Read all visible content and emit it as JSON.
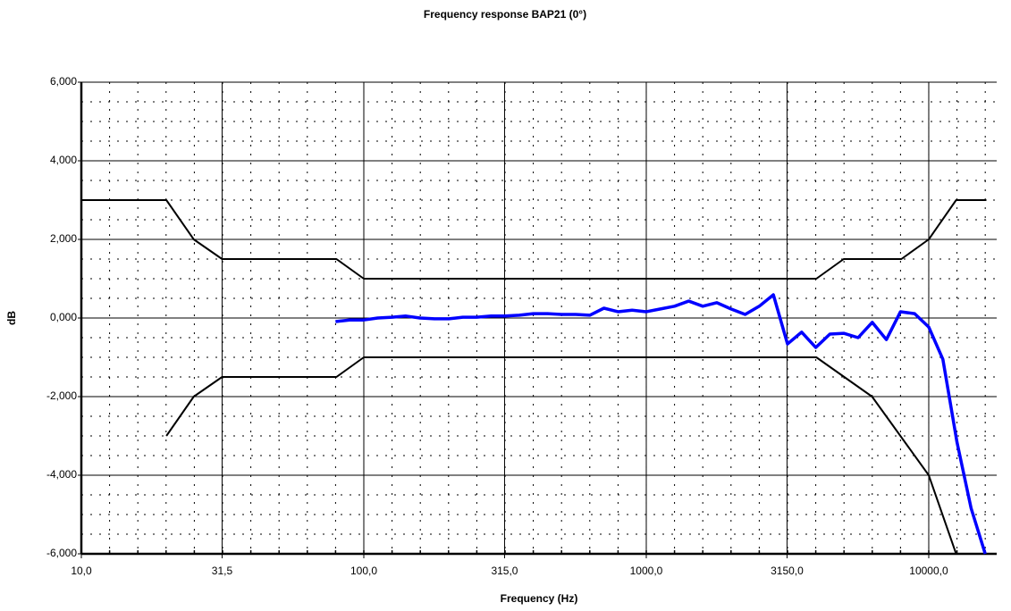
{
  "chart_data": {
    "type": "line",
    "title": "Frequency response BAP21 (0°)",
    "xlabel": "Frequency (Hz)",
    "ylabel": "dB",
    "xscale": "log",
    "xlim": [
      10,
      17400
    ],
    "xticks": [
      {
        "value": 10,
        "label": "10,0"
      },
      {
        "value": 31.5,
        "label": "31,5"
      },
      {
        "value": 100,
        "label": "100,0"
      },
      {
        "value": 315,
        "label": "315,0"
      },
      {
        "value": 1000,
        "label": "1000,0"
      },
      {
        "value": 3150,
        "label": "3150,0"
      },
      {
        "value": 10000,
        "label": "10000,0"
      }
    ],
    "ylim": [
      -6,
      6
    ],
    "yticks": [
      {
        "value": -6,
        "label": "-6,000"
      },
      {
        "value": -4,
        "label": "-4,000"
      },
      {
        "value": -2,
        "label": "-2,000"
      },
      {
        "value": 0,
        "label": "0,000"
      },
      {
        "value": 2,
        "label": "2,000"
      },
      {
        "value": 4,
        "label": "4,000"
      },
      {
        "value": 6,
        "label": "6,000"
      }
    ],
    "grid": true,
    "minor_grid": true,
    "series": [
      {
        "color": "#000000",
        "width": 2,
        "x": [
          10,
          20,
          25,
          31.5,
          80,
          100,
          4000,
          5000,
          8000,
          10000,
          12500,
          16000
        ],
        "values": [
          3,
          3,
          2,
          1.5,
          1.5,
          1,
          1,
          1.5,
          1.5,
          2,
          3,
          3
        ]
      },
      {
        "color": "#000000",
        "width": 2,
        "x": [
          20,
          25,
          31.5,
          80,
          100,
          4000,
          6300,
          10000,
          12500
        ],
        "values": [
          -3,
          -2,
          -1.5,
          -1.5,
          -1,
          -1,
          -2,
          -4,
          -6
        ]
      },
      {
        "color": "#0000ff",
        "width": 3.5,
        "x": [
          79.4,
          89.1,
          100,
          112,
          126,
          141,
          158,
          178,
          200,
          224,
          251,
          282,
          316,
          355,
          398,
          447,
          501,
          562,
          631,
          708,
          794,
          891,
          1000,
          1122,
          1259,
          1413,
          1585,
          1778,
          1995,
          2239,
          2512,
          2818,
          3162,
          3548,
          3981,
          4467,
          5012,
          5623,
          6310,
          7079,
          7943,
          8913,
          10000,
          11220,
          12589,
          14125,
          15849
        ],
        "values": [
          -0.09,
          -0.05,
          -0.05,
          0,
          0.02,
          0.05,
          0,
          -0.02,
          -0.02,
          0.02,
          0.02,
          0.05,
          0.05,
          0.07,
          0.11,
          0.11,
          0.09,
          0.09,
          0.07,
          0.25,
          0.16,
          0.2,
          0.16,
          0.23,
          0.3,
          0.43,
          0.3,
          0.39,
          0.23,
          0.09,
          0.3,
          0.59,
          -0.66,
          -0.36,
          -0.75,
          -0.41,
          -0.39,
          -0.5,
          -0.11,
          -0.55,
          0.16,
          0.11,
          -0.23,
          -1.05,
          -3.16,
          -4.84,
          -6
        ]
      }
    ]
  }
}
